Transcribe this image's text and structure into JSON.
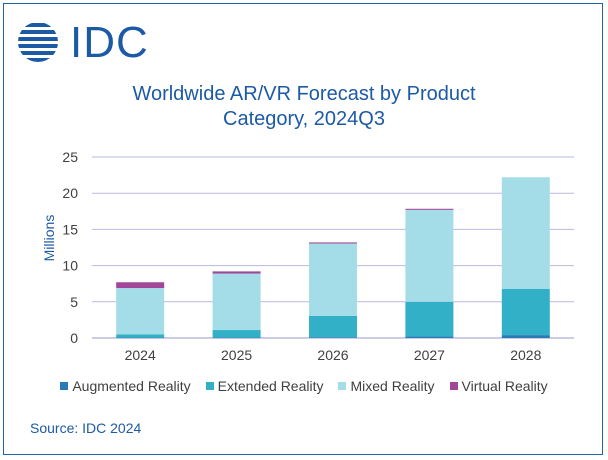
{
  "brand": {
    "logo_text": "IDC",
    "color": "#1d5aa6"
  },
  "source_text": "Source: IDC 2024",
  "chart_data": {
    "type": "bar",
    "stacked": true,
    "title_lines": [
      "Worldwide AR/VR Forecast by Product",
      "Category, 2024Q3"
    ],
    "xlabel": "",
    "ylabel": "Millions",
    "categories": [
      "2024",
      "2025",
      "2026",
      "2027",
      "2028"
    ],
    "ylim": [
      0,
      25
    ],
    "yticks": [
      0,
      5,
      10,
      15,
      20,
      25
    ],
    "grid": true,
    "legend_position": "bottom",
    "series": [
      {
        "name": "Augmented Reality",
        "color": "#2a7ab8",
        "values": [
          0.05,
          0.05,
          0.1,
          0.2,
          0.4
        ]
      },
      {
        "name": "Extended Reality",
        "color": "#31b0c8",
        "values": [
          0.45,
          1.05,
          2.95,
          4.8,
          6.4
        ]
      },
      {
        "name": "Mixed Reality",
        "color": "#a4dde8",
        "values": [
          6.4,
          7.8,
          10.0,
          12.7,
          15.4
        ]
      },
      {
        "name": "Virtual Reality",
        "color": "#a0479a",
        "values": [
          0.8,
          0.3,
          0.15,
          0.15,
          0.0
        ]
      }
    ]
  }
}
